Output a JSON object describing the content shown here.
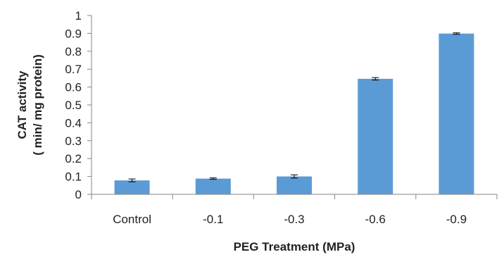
{
  "chart_data": {
    "type": "bar",
    "title": "",
    "xlabel": "PEG Treatment (MPa)",
    "ylabel_line1": "CAT activity",
    "ylabel_line2": "( min/ mg protein)",
    "categories": [
      "Control",
      "-0.1",
      "-0.3",
      "-0.6",
      "-0.9"
    ],
    "values": [
      0.078,
      0.088,
      0.1,
      0.646,
      0.899
    ],
    "errors": [
      0.008,
      0.004,
      0.009,
      0.007,
      0.004
    ],
    "ylim": [
      0,
      1
    ],
    "yticks": [
      0,
      0.1,
      0.2,
      0.3,
      0.4,
      0.5,
      0.6,
      0.7,
      0.8,
      0.9,
      1
    ],
    "ytick_labels": [
      "0",
      "0.1",
      "0.2",
      "0.3",
      "0.4",
      "0.5",
      "0.6",
      "0.7",
      "0.8",
      "0.9",
      "1"
    ],
    "grid": false,
    "bar_color": "#5b9bd5",
    "axis_color": "#868686",
    "error_bar_color": "#000000"
  }
}
